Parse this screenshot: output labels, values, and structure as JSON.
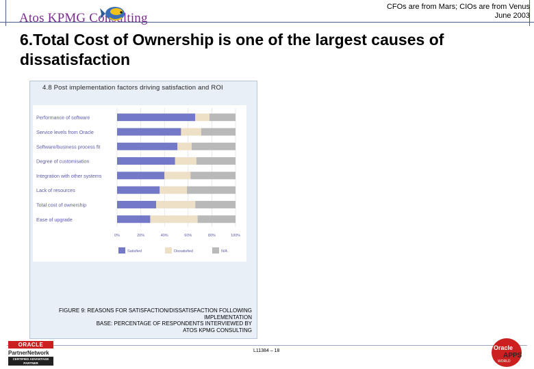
{
  "header": {
    "logo_text": "Atos KPMG Consulting",
    "right_line1": "CFOs are from Mars; CIOs are from Venus",
    "right_line2": "June 2003"
  },
  "slide": {
    "title": "6.Total Cost of Ownership is one of the largest causes of dissatisfaction"
  },
  "panel": {
    "title": "4.8 Post implementation factors driving satisfaction and ROI",
    "caption_lines": [
      "FIGURE 9: REASONS FOR SATISFACTION/DISSATISFACTION FOLLOWING",
      "IMPLEMENTATION",
      "BASE: PERCENTAGE OF RESPONDENTS INTERVIEWED BY",
      "ATOS KPMG CONSULTING"
    ]
  },
  "footer": {
    "page_number": "L11384 – 18",
    "oracle_left": "ORACLE",
    "partner_network": "PartnerNetwork",
    "certified": "CERTIFIED ADVANTAGE PARTNER",
    "oracle_right_line1": "Oracle",
    "oracle_right_line2": "APPS",
    "oracle_right_line3": "WORLD"
  },
  "colors": {
    "satisfied": "#7379c6",
    "dissatisfied": "#eedfc7",
    "na": "#b9b9b9",
    "header_rule": "#4a5a8a"
  },
  "chart_data": {
    "type": "bar",
    "orientation": "horizontal",
    "stacked": true,
    "categories": [
      "Performance of software",
      "Service levels from Oracle",
      "Software/business process fit",
      "Degree of customisation",
      "Integration with other systems",
      "Lack of resources",
      "Total cost of ownership",
      "Ease of upgrade"
    ],
    "series": [
      {
        "name": "Satisfied",
        "values": [
          66,
          54,
          51,
          49,
          40,
          36,
          33,
          28
        ]
      },
      {
        "name": "Dissatisfied",
        "values": [
          12,
          17,
          12,
          18,
          22,
          23,
          33,
          40
        ]
      },
      {
        "name": "N/A",
        "values": [
          22,
          29,
          37,
          33,
          38,
          41,
          34,
          32
        ]
      }
    ],
    "x_ticks": [
      "0%",
      "20%",
      "40%",
      "60%",
      "80%",
      "100%"
    ],
    "xlim": [
      0,
      100
    ],
    "legend": "bottom",
    "grid": true
  }
}
